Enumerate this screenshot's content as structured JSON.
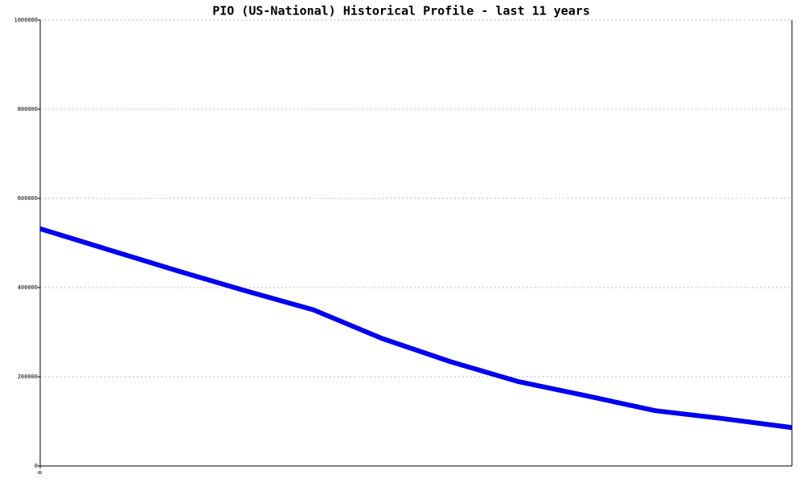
{
  "chart_data": {
    "type": "line",
    "title": "PIO (US-National) Historical Profile - last 11 years",
    "x": [
      0,
      1,
      2,
      3,
      4,
      5,
      6,
      7,
      8,
      9,
      10,
      11
    ],
    "series": [
      {
        "color": "#0000ee",
        "values": [
          532000,
          485000,
          438000,
          393000,
          350000,
          286000,
          234000,
          189000,
          157000,
          124000,
          106000,
          86000
        ]
      }
    ],
    "xlim": [
      0,
      11
    ],
    "xticks": [
      0
    ],
    "ylim": [
      0,
      1000000
    ],
    "yticks": [
      0,
      200000,
      400000,
      600000,
      800000,
      1000000
    ],
    "grid": true
  }
}
